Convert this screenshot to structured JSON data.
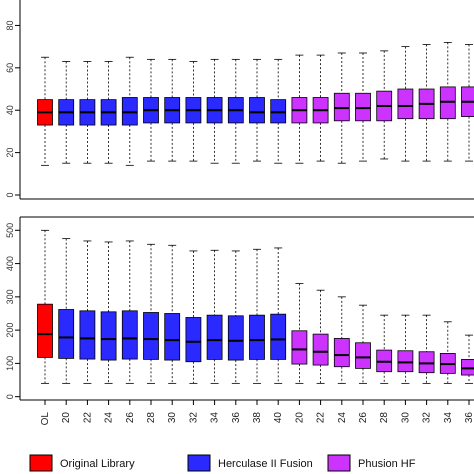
{
  "chart_data": [
    {
      "type": "boxplot",
      "title": "",
      "xlabel": "",
      "ylabel": "",
      "ylim": [
        0,
        80
      ],
      "yticks": [
        0,
        20,
        40,
        60,
        80
      ],
      "ytick_labels": [
        "0",
        "20",
        "40",
        "60",
        "80"
      ],
      "categories": [
        "OL",
        "20",
        "22",
        "24",
        "26",
        "28",
        "30",
        "32",
        "34",
        "36",
        "38",
        "40",
        "20",
        "22",
        "24",
        "26",
        "28",
        "30",
        "32",
        "34",
        "36",
        "38",
        "40"
      ],
      "groups": [
        "Original Library",
        "Herculase II Fusion",
        "Herculase II Fusion",
        "Herculase II Fusion",
        "Herculase II Fusion",
        "Herculase II Fusion",
        "Herculase II Fusion",
        "Herculase II Fusion",
        "Herculase II Fusion",
        "Herculase II Fusion",
        "Herculase II Fusion",
        "Herculase II Fusion",
        "Phusion HF",
        "Phusion HF",
        "Phusion HF",
        "Phusion HF",
        "Phusion HF",
        "Phusion HF",
        "Phusion HF",
        "Phusion HF",
        "Phusion HF",
        "Phusion HF",
        "Phusion HF"
      ],
      "boxes": [
        {
          "min": 14,
          "q1": 33,
          "median": 39,
          "q3": 45,
          "max": 65
        },
        {
          "min": 15,
          "q1": 33,
          "median": 39,
          "q3": 45,
          "max": 63
        },
        {
          "min": 15,
          "q1": 33,
          "median": 39,
          "q3": 45,
          "max": 63
        },
        {
          "min": 15,
          "q1": 33,
          "median": 39,
          "q3": 45,
          "max": 63
        },
        {
          "min": 14,
          "q1": 33,
          "median": 39,
          "q3": 46,
          "max": 65
        },
        {
          "min": 16,
          "q1": 34,
          "median": 40,
          "q3": 46,
          "max": 64
        },
        {
          "min": 16,
          "q1": 34,
          "median": 40,
          "q3": 46,
          "max": 64
        },
        {
          "min": 16,
          "q1": 34,
          "median": 40,
          "q3": 46,
          "max": 63
        },
        {
          "min": 15,
          "q1": 34,
          "median": 40,
          "q3": 46,
          "max": 64
        },
        {
          "min": 15,
          "q1": 34,
          "median": 40,
          "q3": 46,
          "max": 64
        },
        {
          "min": 16,
          "q1": 34,
          "median": 39,
          "q3": 46,
          "max": 64
        },
        {
          "min": 15,
          "q1": 34,
          "median": 39,
          "q3": 45,
          "max": 64
        },
        {
          "min": 15,
          "q1": 34,
          "median": 40,
          "q3": 46,
          "max": 66
        },
        {
          "min": 16,
          "q1": 34,
          "median": 40,
          "q3": 46,
          "max": 66
        },
        {
          "min": 15,
          "q1": 35,
          "median": 41,
          "q3": 48,
          "max": 67
        },
        {
          "min": 16,
          "q1": 35,
          "median": 41,
          "q3": 48,
          "max": 67
        },
        {
          "min": 17,
          "q1": 35,
          "median": 42,
          "q3": 49,
          "max": 68
        },
        {
          "min": 16,
          "q1": 36,
          "median": 42,
          "q3": 50,
          "max": 70
        },
        {
          "min": 16,
          "q1": 36,
          "median": 43,
          "q3": 50,
          "max": 71
        },
        {
          "min": 16,
          "q1": 36,
          "median": 44,
          "q3": 51,
          "max": 72
        },
        {
          "min": 16,
          "q1": 37,
          "median": 44,
          "q3": 51,
          "max": 71
        },
        {
          "min": 16,
          "q1": 37,
          "median": 44,
          "q3": 52,
          "max": 73
        },
        {
          "min": 16,
          "q1": 37,
          "median": 44,
          "q3": 52,
          "max": 73
        }
      ]
    },
    {
      "type": "boxplot",
      "title": "",
      "xlabel": "",
      "ylabel": "",
      "ylim": [
        0,
        500
      ],
      "yticks": [
        0,
        100,
        200,
        300,
        400,
        500
      ],
      "ytick_labels": [
        "0",
        "100",
        "200",
        "300",
        "400",
        "500"
      ],
      "categories": [
        "OL",
        "20",
        "22",
        "24",
        "26",
        "28",
        "30",
        "32",
        "34",
        "36",
        "38",
        "40",
        "20",
        "22",
        "24",
        "26",
        "28",
        "30",
        "32",
        "34",
        "36",
        "38",
        "40"
      ],
      "groups": [
        "Original Library",
        "Herculase II Fusion",
        "Herculase II Fusion",
        "Herculase II Fusion",
        "Herculase II Fusion",
        "Herculase II Fusion",
        "Herculase II Fusion",
        "Herculase II Fusion",
        "Herculase II Fusion",
        "Herculase II Fusion",
        "Herculase II Fusion",
        "Herculase II Fusion",
        "Phusion HF",
        "Phusion HF",
        "Phusion HF",
        "Phusion HF",
        "Phusion HF",
        "Phusion HF",
        "Phusion HF",
        "Phusion HF",
        "Phusion HF",
        "Phusion HF",
        "Phusion HF"
      ],
      "boxes": [
        {
          "min": 40,
          "q1": 118,
          "median": 188,
          "q3": 278,
          "max": 500
        },
        {
          "min": 40,
          "q1": 115,
          "median": 178,
          "q3": 262,
          "max": 475
        },
        {
          "min": 40,
          "q1": 113,
          "median": 175,
          "q3": 258,
          "max": 468
        },
        {
          "min": 40,
          "q1": 110,
          "median": 173,
          "q3": 255,
          "max": 465
        },
        {
          "min": 40,
          "q1": 113,
          "median": 175,
          "q3": 258,
          "max": 468
        },
        {
          "min": 40,
          "q1": 112,
          "median": 173,
          "q3": 253,
          "max": 458
        },
        {
          "min": 40,
          "q1": 110,
          "median": 170,
          "q3": 250,
          "max": 455
        },
        {
          "min": 40,
          "q1": 105,
          "median": 165,
          "q3": 238,
          "max": 438
        },
        {
          "min": 40,
          "q1": 112,
          "median": 170,
          "q3": 245,
          "max": 440
        },
        {
          "min": 40,
          "q1": 110,
          "median": 168,
          "q3": 243,
          "max": 438
        },
        {
          "min": 40,
          "q1": 112,
          "median": 170,
          "q3": 245,
          "max": 443
        },
        {
          "min": 40,
          "q1": 112,
          "median": 172,
          "q3": 248,
          "max": 447
        },
        {
          "min": 40,
          "q1": 98,
          "median": 142,
          "q3": 198,
          "max": 340
        },
        {
          "min": 40,
          "q1": 95,
          "median": 135,
          "q3": 188,
          "max": 320
        },
        {
          "min": 40,
          "q1": 90,
          "median": 125,
          "q3": 175,
          "max": 300
        },
        {
          "min": 40,
          "q1": 85,
          "median": 118,
          "q3": 162,
          "max": 275
        },
        {
          "min": 40,
          "q1": 75,
          "median": 105,
          "q3": 140,
          "max": 245
        },
        {
          "min": 40,
          "q1": 75,
          "median": 103,
          "q3": 138,
          "max": 245
        },
        {
          "min": 40,
          "q1": 72,
          "median": 100,
          "q3": 135,
          "max": 245
        },
        {
          "min": 40,
          "q1": 70,
          "median": 98,
          "q3": 130,
          "max": 225
        },
        {
          "min": 40,
          "q1": 65,
          "median": 85,
          "q3": 112,
          "max": 185
        },
        {
          "min": 40,
          "q1": 60,
          "median": 80,
          "q3": 108,
          "max": 190
        },
        {
          "min": 40,
          "q1": 62,
          "median": 80,
          "q3": 110,
          "max": 190
        }
      ]
    }
  ],
  "legend": {
    "items": [
      {
        "label": "Original Library",
        "color": "#ff0000"
      },
      {
        "label": "Herculase II Fusion",
        "color": "#2a2aff"
      },
      {
        "label": "Phusion HF",
        "color": "#cc33ff"
      }
    ]
  },
  "colors": {
    "Original Library": "#ff0000",
    "Herculase II Fusion": "#2a2aff",
    "Phusion HF": "#cc33ff"
  }
}
